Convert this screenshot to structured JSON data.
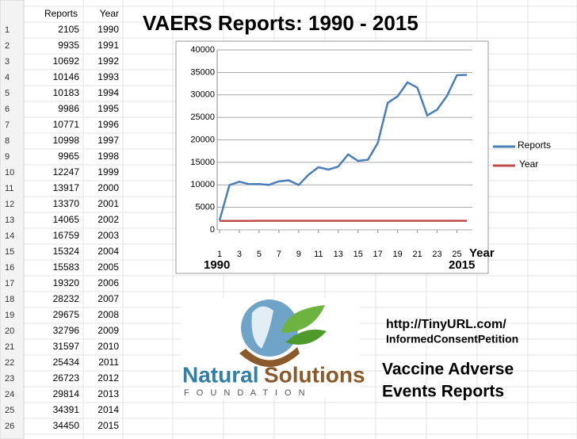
{
  "spreadsheet": {
    "headers": [
      "Reports",
      "Year"
    ],
    "row_numbers": [
      1,
      2,
      3,
      4,
      5,
      6,
      7,
      8,
      9,
      10,
      11,
      12,
      13,
      14,
      15,
      16,
      17,
      18,
      19,
      20,
      21,
      22,
      23,
      24,
      25,
      26
    ],
    "rows": [
      [
        2105,
        1990
      ],
      [
        9935,
        1991
      ],
      [
        10692,
        1992
      ],
      [
        10146,
        1993
      ],
      [
        10183,
        1994
      ],
      [
        9986,
        1995
      ],
      [
        10771,
        1996
      ],
      [
        10998,
        1997
      ],
      [
        9965,
        1998
      ],
      [
        12247,
        1999
      ],
      [
        13917,
        2000
      ],
      [
        13370,
        2001
      ],
      [
        14065,
        2002
      ],
      [
        16759,
        2003
      ],
      [
        15324,
        2004
      ],
      [
        15583,
        2005
      ],
      [
        19320,
        2006
      ],
      [
        28232,
        2007
      ],
      [
        29675,
        2008
      ],
      [
        32796,
        2009
      ],
      [
        31597,
        2010
      ],
      [
        25434,
        2011
      ],
      [
        26723,
        2012
      ],
      [
        29814,
        2013
      ],
      [
        34391,
        2014
      ],
      [
        34450,
        2015
      ]
    ]
  },
  "chart_data": {
    "type": "line",
    "title": "VAERS Reports: 1990 - 2015",
    "x": [
      1,
      2,
      3,
      4,
      5,
      6,
      7,
      8,
      9,
      10,
      11,
      12,
      13,
      14,
      15,
      16,
      17,
      18,
      19,
      20,
      21,
      22,
      23,
      24,
      25,
      26
    ],
    "xlim": [
      1,
      26
    ],
    "xticks": [
      1,
      3,
      5,
      7,
      9,
      11,
      13,
      15,
      17,
      19,
      21,
      23,
      25
    ],
    "ylim": [
      0,
      40000
    ],
    "yticks": [
      0,
      5000,
      10000,
      15000,
      20000,
      25000,
      30000,
      35000,
      40000
    ],
    "grid": true,
    "legend": "right",
    "x_label": "Year",
    "annotations": [
      "1990",
      "2015"
    ],
    "series": [
      {
        "name": "Reports",
        "color": "#4a7ebb",
        "values": [
          2105,
          9935,
          10692,
          10146,
          10183,
          9986,
          10771,
          10998,
          9965,
          12247,
          13917,
          13370,
          14065,
          16759,
          15324,
          15583,
          19320,
          28232,
          29675,
          32796,
          31597,
          25434,
          26723,
          29814,
          34391,
          34450
        ]
      },
      {
        "name": "Year",
        "color": "#be4b48",
        "values": [
          1990,
          1991,
          1992,
          1993,
          1994,
          1995,
          1996,
          1997,
          1998,
          1999,
          2000,
          2001,
          2002,
          2003,
          2004,
          2005,
          2006,
          2007,
          2008,
          2009,
          2010,
          2011,
          2012,
          2013,
          2014,
          2015
        ]
      }
    ]
  },
  "logo": {
    "word1": "Natural",
    "word2": "Solutions",
    "sub": "F O U N D A T I O N"
  },
  "url": {
    "line1": "http://TinyURL.com/",
    "line2": "InformedConsentPetition"
  },
  "caption": {
    "line1": "Vaccine Adverse",
    "line2": "Events Reports"
  }
}
